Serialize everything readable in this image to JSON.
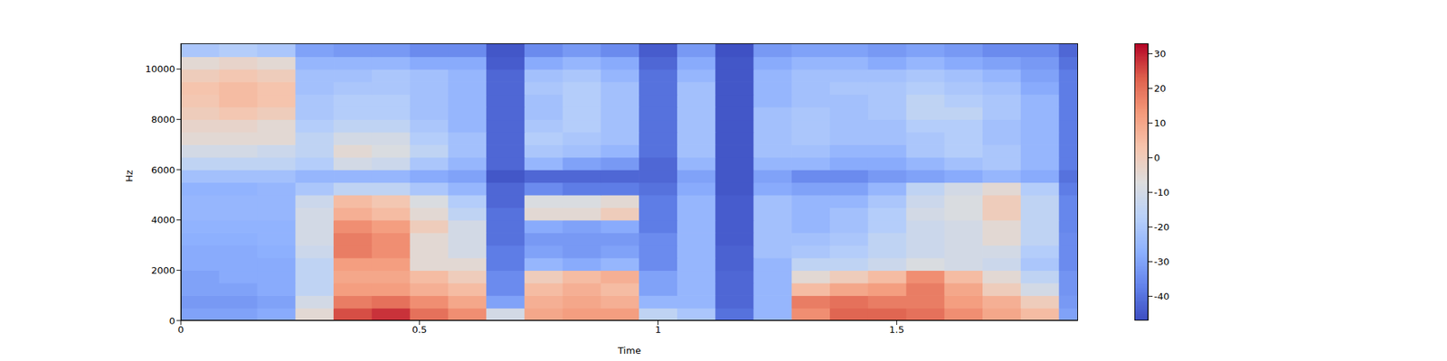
{
  "chart_data": {
    "type": "heatmap",
    "x_label": "Time",
    "y_label": "Hz",
    "xlim": [
      0,
      1.88
    ],
    "xticks": [
      0,
      0.5,
      1,
      1.5
    ],
    "ylim": [
      0,
      11025
    ],
    "yticks": [
      0,
      2000,
      4000,
      6000,
      8000,
      10000
    ],
    "time_edges": [
      0,
      0.08,
      0.16,
      0.24,
      0.32,
      0.4,
      0.48,
      0.56,
      0.64,
      0.72,
      0.8,
      0.88,
      0.96,
      1.04,
      1.12,
      1.2,
      1.28,
      1.36,
      1.44,
      1.52,
      1.6,
      1.68,
      1.76,
      1.84,
      1.88
    ],
    "freq_edges": [
      0,
      500,
      1000,
      1500,
      2000,
      2500,
      3000,
      3500,
      4000,
      4500,
      5000,
      5500,
      6000,
      6500,
      7000,
      7500,
      8000,
      8500,
      9000,
      9500,
      10000,
      10500,
      11025
    ],
    "cells": [
      [
        -30,
        -30,
        -28,
        -5,
        25,
        28,
        20,
        15,
        -10,
        10,
        12,
        12,
        -15,
        -20,
        -40,
        -25,
        15,
        22,
        22,
        20,
        15,
        10,
        5,
        -30
      ],
      [
        -32,
        -32,
        -30,
        -10,
        18,
        20,
        15,
        10,
        -30,
        8,
        10,
        8,
        -25,
        -25,
        -42,
        -25,
        18,
        20,
        18,
        18,
        12,
        8,
        0,
        -32
      ],
      [
        -30,
        -30,
        -28,
        -15,
        12,
        12,
        8,
        5,
        -35,
        5,
        8,
        5,
        -30,
        -25,
        -42,
        -25,
        5,
        10,
        12,
        18,
        10,
        0,
        -10,
        -33
      ],
      [
        -30,
        -28,
        -28,
        -15,
        10,
        10,
        5,
        0,
        -35,
        0,
        5,
        8,
        -30,
        -25,
        -42,
        -25,
        -5,
        0,
        5,
        15,
        5,
        -5,
        -15,
        -33
      ],
      [
        -28,
        -28,
        -28,
        -15,
        12,
        12,
        -5,
        -5,
        -38,
        -25,
        -28,
        -25,
        -35,
        -25,
        -43,
        -25,
        -15,
        -15,
        -12,
        -8,
        -10,
        -12,
        -20,
        -35
      ],
      [
        -28,
        -28,
        -27,
        -12,
        18,
        15,
        -5,
        -10,
        -38,
        -30,
        -32,
        -30,
        -35,
        -25,
        -43,
        -22,
        -20,
        -18,
        -15,
        -12,
        -10,
        -10,
        -18,
        -35
      ],
      [
        -27,
        -27,
        -26,
        -10,
        18,
        15,
        -5,
        -10,
        -40,
        -32,
        -32,
        -32,
        -35,
        -25,
        -44,
        -22,
        -22,
        -20,
        -15,
        -12,
        -10,
        -5,
        -15,
        -35
      ],
      [
        -26,
        -26,
        -26,
        -10,
        15,
        12,
        0,
        -10,
        -40,
        -28,
        -30,
        -28,
        -38,
        -25,
        -44,
        -22,
        -25,
        -22,
        -18,
        -12,
        -10,
        -5,
        -15,
        -36
      ],
      [
        -25,
        -25,
        -25,
        -10,
        8,
        5,
        -5,
        -15,
        -40,
        -5,
        -5,
        0,
        -38,
        -25,
        -44,
        -22,
        -25,
        -22,
        -18,
        -10,
        -8,
        0,
        -15,
        -36
      ],
      [
        -25,
        -25,
        -25,
        -12,
        5,
        2,
        -8,
        -18,
        -42,
        -8,
        -8,
        -5,
        -38,
        -25,
        -44,
        -22,
        -25,
        -25,
        -20,
        -12,
        -8,
        0,
        -15,
        -36
      ],
      [
        -26,
        -26,
        -25,
        -20,
        -15,
        -15,
        -20,
        -25,
        -42,
        -35,
        -38,
        -38,
        -40,
        -28,
        -45,
        -28,
        -30,
        -30,
        -25,
        -15,
        -10,
        -5,
        -18,
        -38
      ],
      [
        -22,
        -22,
        -22,
        -25,
        -25,
        -25,
        -28,
        -30,
        -45,
        -42,
        -42,
        -42,
        -42,
        -30,
        -45,
        -30,
        -35,
        -35,
        -32,
        -30,
        -28,
        -25,
        -28,
        -40
      ],
      [
        -15,
        -15,
        -15,
        -18,
        -10,
        -12,
        -20,
        -25,
        -42,
        -25,
        -30,
        -32,
        -42,
        -25,
        -45,
        -25,
        -25,
        -28,
        -28,
        -25,
        -22,
        -20,
        -25,
        -38
      ],
      [
        -10,
        -10,
        -12,
        -15,
        -5,
        -8,
        -15,
        -22,
        -42,
        -20,
        -22,
        -25,
        -40,
        -22,
        -45,
        -22,
        -22,
        -25,
        -25,
        -20,
        -18,
        -20,
        -25,
        -38
      ],
      [
        -5,
        -5,
        -5,
        -15,
        -10,
        -10,
        -18,
        -22,
        -42,
        -18,
        -20,
        -22,
        -40,
        -22,
        -45,
        -22,
        -20,
        -22,
        -22,
        -20,
        -18,
        -22,
        -25,
        -38
      ],
      [
        -3,
        -3,
        -5,
        -18,
        -15,
        -15,
        -20,
        -25,
        -42,
        -20,
        -18,
        -22,
        -40,
        -22,
        -45,
        -22,
        -20,
        -22,
        -22,
        -18,
        -18,
        -22,
        -25,
        -38
      ],
      [
        0,
        2,
        0,
        -20,
        -18,
        -18,
        -22,
        -25,
        -42,
        -22,
        -18,
        -22,
        -40,
        -22,
        -45,
        -22,
        -20,
        -22,
        -20,
        -15,
        -15,
        -20,
        -25,
        -38
      ],
      [
        2,
        5,
        3,
        -20,
        -18,
        -18,
        -22,
        -25,
        -42,
        -22,
        -18,
        -22,
        -40,
        -22,
        -45,
        -25,
        -22,
        -22,
        -20,
        -15,
        -18,
        -20,
        -25,
        -38
      ],
      [
        3,
        5,
        3,
        -22,
        -20,
        -20,
        -22,
        -25,
        -42,
        -20,
        -18,
        -22,
        -40,
        -22,
        -45,
        -25,
        -22,
        -20,
        -20,
        -18,
        -20,
        -22,
        -28,
        -38
      ],
      [
        0,
        2,
        0,
        -22,
        -22,
        -20,
        -22,
        -25,
        -42,
        -22,
        -20,
        -25,
        -40,
        -25,
        -45,
        -25,
        -22,
        -22,
        -22,
        -20,
        -22,
        -25,
        -30,
        -38
      ],
      [
        -5,
        -3,
        -5,
        -25,
        -25,
        -25,
        -28,
        -28,
        -44,
        -28,
        -25,
        -28,
        -42,
        -28,
        -45,
        -28,
        -25,
        -25,
        -28,
        -25,
        -28,
        -30,
        -32,
        -40
      ],
      [
        -20,
        -18,
        -20,
        -30,
        -32,
        -32,
        -35,
        -35,
        -45,
        -35,
        -32,
        -35,
        -44,
        -32,
        -46,
        -32,
        -30,
        -30,
        -32,
        -30,
        -32,
        -35,
        -35,
        -42
      ]
    ],
    "colorbar": {
      "range": [
        -47,
        33
      ],
      "ticks": [
        -40,
        -30,
        -20,
        -10,
        0,
        10,
        20,
        30
      ]
    }
  }
}
